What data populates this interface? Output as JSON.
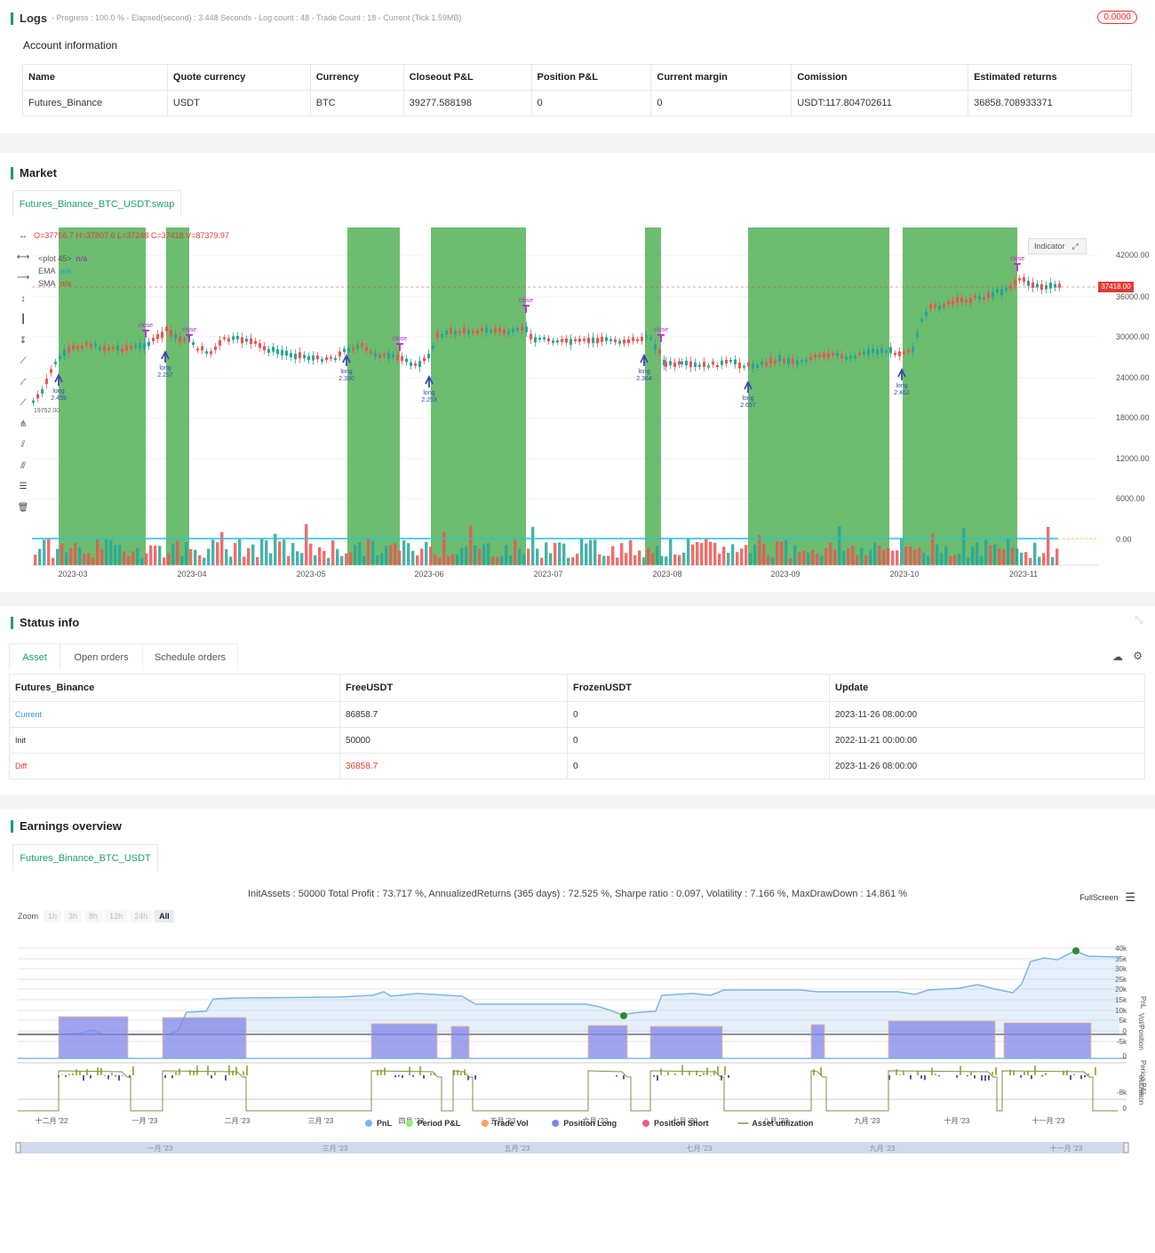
{
  "logs": {
    "title": "Logs",
    "progress_line": "- Progress : 100.0 % - Elapsed(second) : 3.448  Seconds - Log count : 48 - Trade Count : 18 - Current (Tick 1.59MB)",
    "badge": "0.0000"
  },
  "account": {
    "title": "Account information",
    "headers": [
      "Name",
      "Quote currency",
      "Currency",
      "Closeout P&L",
      "Position P&L",
      "Current margin",
      "Comission",
      "Estimated returns"
    ],
    "row": [
      "Futures_Binance",
      "USDT",
      "BTC",
      "39277.588198",
      "0",
      "0",
      "USDT:117.804702611",
      "36858.708933371"
    ]
  },
  "market": {
    "title": "Market",
    "tab": "Futures_Binance_BTC_USDT:swap",
    "ohlc": "O=37756.7 H=37807.6 L=37248 C=37418 V=87379.97",
    "legend_plot": "<plot 45>",
    "legend_plot_val": "n/a",
    "legend_ema": "EMA",
    "legend_ema_val": "n/a",
    "legend_sma": "SMA",
    "legend_sma_val": "n/a",
    "indicator_btn": "Indicator",
    "price_tag": "37418.00",
    "low_label": "19752.00",
    "y_ticks": [
      "42000.00",
      "36000.00",
      "30000.00",
      "24000.00",
      "18000.00",
      "12000.00",
      "6000.00",
      "0.00"
    ],
    "x_ticks": [
      "2023-03",
      "2023-04",
      "2023-05",
      "2023-06",
      "2023-07",
      "2023-08",
      "2023-09",
      "2023-10",
      "2023-11"
    ],
    "trade_labels": [
      {
        "text": "long",
        "sub": "2.459"
      },
      {
        "text": "long",
        "sub": "2.257"
      },
      {
        "text": "long",
        "sub": "2.330"
      },
      {
        "text": "long",
        "sub": "2.253"
      },
      {
        "text": "long",
        "sub": "2.364"
      },
      {
        "text": "long",
        "sub": "2.657"
      },
      {
        "text": "long",
        "sub": "2.462"
      }
    ],
    "close_label": "close",
    "colors": {
      "bull": "#26a69a",
      "bear": "#ef5350",
      "shade": "#4caf50",
      "accent": "#1e9e6e"
    }
  },
  "status": {
    "title": "Status info",
    "tabs": [
      "Asset",
      "Open orders",
      "Schedule orders"
    ],
    "headers": [
      "Futures_Binance",
      "FreeUSDT",
      "FrozenUSDT",
      "Update"
    ],
    "rows": [
      [
        "Current",
        "86858.7",
        "0",
        "2023-11-26 08:00:00"
      ],
      [
        "Init",
        "50000",
        "0",
        "2022-11-21 00:00:00"
      ],
      [
        "Diff",
        "36858.7",
        "0",
        "2023-11-26 08:00:00"
      ]
    ]
  },
  "earnings": {
    "title": "Earnings overview",
    "tab": "Futures_Binance_BTC_USDT",
    "summary": "InitAssets : 50000 Total Profit : 73.717 %, AnnualizedReturns (365 days) : 72.525 %, Sharpe ratio : 0.097, Volatility : 7.166 %, MaxDrawDown : 14.861 %",
    "fullscreen": "FullScreen",
    "zoom_label": "Zoom",
    "zoom_options": [
      "1h",
      "3h",
      "8h",
      "12h",
      "24h",
      "All"
    ],
    "pnl_ticks": [
      "40k",
      "35k",
      "30k",
      "25k",
      "20k",
      "15k",
      "10k",
      "5k",
      "0",
      "-5k"
    ],
    "period_tick": "-8k",
    "vol_tick": "0",
    "util_tick": "0",
    "axis_titles": [
      "PnL",
      "Period P&L",
      "Vol/Position",
      "utilization"
    ],
    "x_ticks": [
      "十二月 '22",
      "一月 '23",
      "二月 '23",
      "三月 '23",
      "四月 '23",
      "五月 '23",
      "六月 '23",
      "七月 '23",
      "八月 '23",
      "九月 '23",
      "十月 '23",
      "十一月 '23"
    ],
    "nav_ticks": [
      "一月 '23",
      "三月 '23",
      "五月 '23",
      "七月 '23",
      "九月 '23",
      "十一月 '23"
    ],
    "legend": [
      {
        "label": "PnL",
        "color": "#7cb5ec"
      },
      {
        "label": "Period P&L",
        "color": "#90ed7d"
      },
      {
        "label": "Trade Vol",
        "color": "#f7a35c"
      },
      {
        "label": "Position Long",
        "color": "#8085e9"
      },
      {
        "label": "Position Short",
        "color": "#f15c80"
      },
      {
        "label": "Asset utilization",
        "color": "#8d8a4a"
      }
    ]
  }
}
